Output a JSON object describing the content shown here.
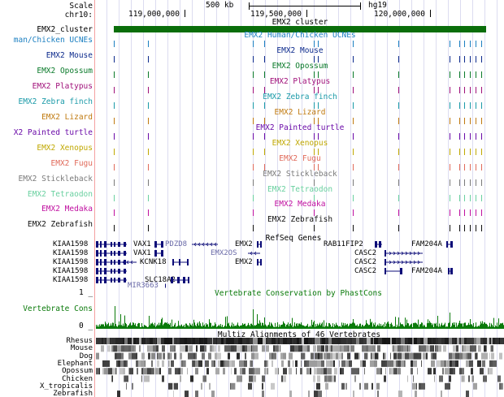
{
  "header": {
    "scale_label": "Scale",
    "chrom_label": "chr10:",
    "scale_value": "500 kb",
    "assembly": "hg19",
    "positions": [
      "119,000,000",
      "119,500,000",
      "120,000,000"
    ]
  },
  "cluster": {
    "label": "EMX2_cluster",
    "center": "EMX2_cluster",
    "color": "#0a6e0a"
  },
  "tracks": [
    {
      "label": "man/Chicken UCNEs",
      "center": "EMX2 Human/Chicken UCNEs",
      "color": "#1b7fc1"
    },
    {
      "label": "EMX2 Mouse",
      "center": "EMX2 Mouse",
      "color": "#0c2a8c"
    },
    {
      "label": "EMX2 Opossum",
      "center": "EMX2 Opossum",
      "color": "#0a7a2a"
    },
    {
      "label": "EMX2 Platypus",
      "center": "EMX2 Platypus",
      "color": "#a0107a"
    },
    {
      "label": "EMX2 Zebra finch",
      "center": "EMX2 Zebra finch",
      "color": "#1a9aa8"
    },
    {
      "label": "EMX2 Lizard",
      "center": "EMX2 Lizard",
      "color": "#c07a10"
    },
    {
      "label": "X2 Painted turtle",
      "center": "EMX2 Painted turtle",
      "color": "#6a0aa8"
    },
    {
      "label": "EMX2 Xenopus",
      "center": "EMX2 Xenopus",
      "color": "#c0a800"
    },
    {
      "label": "EMX2 Fugu",
      "center": "EMX2 Fugu",
      "color": "#e06a5a"
    },
    {
      "label": "EMX2 Stickleback",
      "center": "EMX2 Stickleback",
      "color": "#7a7a7a"
    },
    {
      "label": "EMX2 Tetraodon",
      "center": "EMX2 Tetraodon",
      "color": "#6ad0a0"
    },
    {
      "label": "EMX2 Medaka",
      "center": "EMX2 Medaka",
      "color": "#c010a0"
    },
    {
      "label": "EMX2 Zebrafish",
      "center": "EMX2 Zebrafish",
      "color": "#101010"
    }
  ],
  "refseq": {
    "title": "RefSeq Genes",
    "gene_color": "#0c0c78",
    "left_genes": [
      "KIAA1598",
      "KIAA1598",
      "KIAA1598",
      "KIAA1598",
      "KIAA1598"
    ],
    "vax1": [
      "VAX1",
      "VAX1"
    ],
    "pdzd8": "PDZD8",
    "kcnk18": "KCNK18",
    "slc18a2": "SLC18A2",
    "mir3663": "MIR3663",
    "emx2": [
      "EMX2",
      "EMX2"
    ],
    "emx2os": "EMX2OS",
    "rab11fip2": "RAB11FIP2",
    "casc2": [
      "CASC2",
      "CASC2",
      "CASC2"
    ],
    "fam204a": [
      "FAM204A",
      "FAM204A"
    ]
  },
  "conservation": {
    "title": "Vertebrate Conservation by PhastCons",
    "label": "Vertebrate Cons",
    "axis_top": "1 _",
    "axis_bottom": "0 _",
    "color": "#0a7a0a"
  },
  "multiz": {
    "title": "Multiz Alignments of 46 Vertebrates",
    "species": [
      "Rhesus",
      "Mouse",
      "Dog",
      "Elephant",
      "Opossum",
      "Chicken",
      "X_tropicalis",
      "Zebrafish"
    ]
  }
}
